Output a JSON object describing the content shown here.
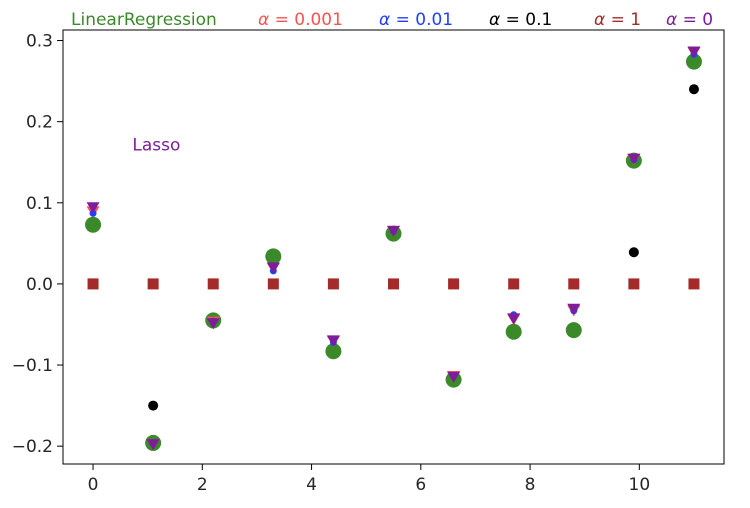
{
  "chart_data": {
    "type": "scatter",
    "xlim": [
      -0.55,
      11.55
    ],
    "ylim": [
      -0.222,
      0.313
    ],
    "xticks": [
      0,
      2,
      4,
      6,
      8,
      10
    ],
    "yticks": [
      -0.2,
      -0.1,
      0.0,
      0.1,
      0.2,
      0.3
    ],
    "xtick_labels": [
      "0",
      "2",
      "4",
      "6",
      "8",
      "10"
    ],
    "ytick_labels": [
      "−0.2",
      "−0.1",
      "0.0",
      "0.1",
      "0.2",
      "0.3"
    ],
    "grid": false,
    "annotation": "Lasso",
    "legend_position": "top (above axes, single row)",
    "series": [
      {
        "name": "LinearRegression",
        "color": "#3a8a2a",
        "marker": "circle-large",
        "x": [
          0,
          1.1,
          2.2,
          3.3,
          4.4,
          5.5,
          6.6,
          7.7,
          8.8,
          9.9,
          11
        ],
        "y": [
          0.073,
          -0.196,
          -0.045,
          0.034,
          -0.083,
          0.062,
          -0.118,
          -0.059,
          -0.057,
          0.152,
          0.274
        ]
      },
      {
        "name": "α = 0.001",
        "color": "#ff5050",
        "marker": "triangle-down",
        "x": [
          0,
          1.1,
          2.2,
          3.3,
          4.4,
          5.5,
          6.6,
          7.7,
          8.8,
          9.9,
          11
        ],
        "y": [
          0.09,
          -0.197,
          -0.046,
          0.02,
          -0.07,
          0.066,
          -0.113,
          -0.043,
          -0.032,
          0.154,
          0.286
        ]
      },
      {
        "name": "α = 0.01",
        "color": "#2040ff",
        "marker": "dot-small",
        "x": [
          0,
          1.1,
          2.2,
          3.3,
          4.4,
          5.5,
          6.6,
          7.7,
          8.8,
          9.9,
          11
        ],
        "y": [
          0.087,
          -0.197,
          -0.046,
          0.016,
          -0.072,
          0.065,
          -0.114,
          -0.038,
          -0.033,
          0.153,
          0.283
        ]
      },
      {
        "name": "α = 0.1",
        "color": "#000000",
        "marker": "dot",
        "x": [
          1.1,
          9.9,
          11
        ],
        "y": [
          -0.15,
          0.039,
          0.24
        ]
      },
      {
        "name": "α = 1",
        "color": "#a52a2a",
        "marker": "square",
        "x": [
          0,
          1.1,
          2.2,
          3.3,
          4.4,
          5.5,
          6.6,
          7.7,
          8.8,
          9.9,
          11
        ],
        "y": [
          0,
          0,
          0,
          0,
          0,
          0,
          0,
          0,
          0,
          0,
          0
        ]
      },
      {
        "name": "α = 0",
        "color": "#7d1d9a",
        "marker": "triangle-down",
        "x": [
          0,
          1.1,
          2.2,
          3.3,
          4.4,
          5.5,
          6.6,
          7.7,
          8.8,
          9.9,
          11
        ],
        "y": [
          0.095,
          -0.197,
          -0.048,
          0.021,
          -0.069,
          0.066,
          -0.114,
          -0.042,
          -0.03,
          0.155,
          0.287
        ]
      }
    ]
  }
}
